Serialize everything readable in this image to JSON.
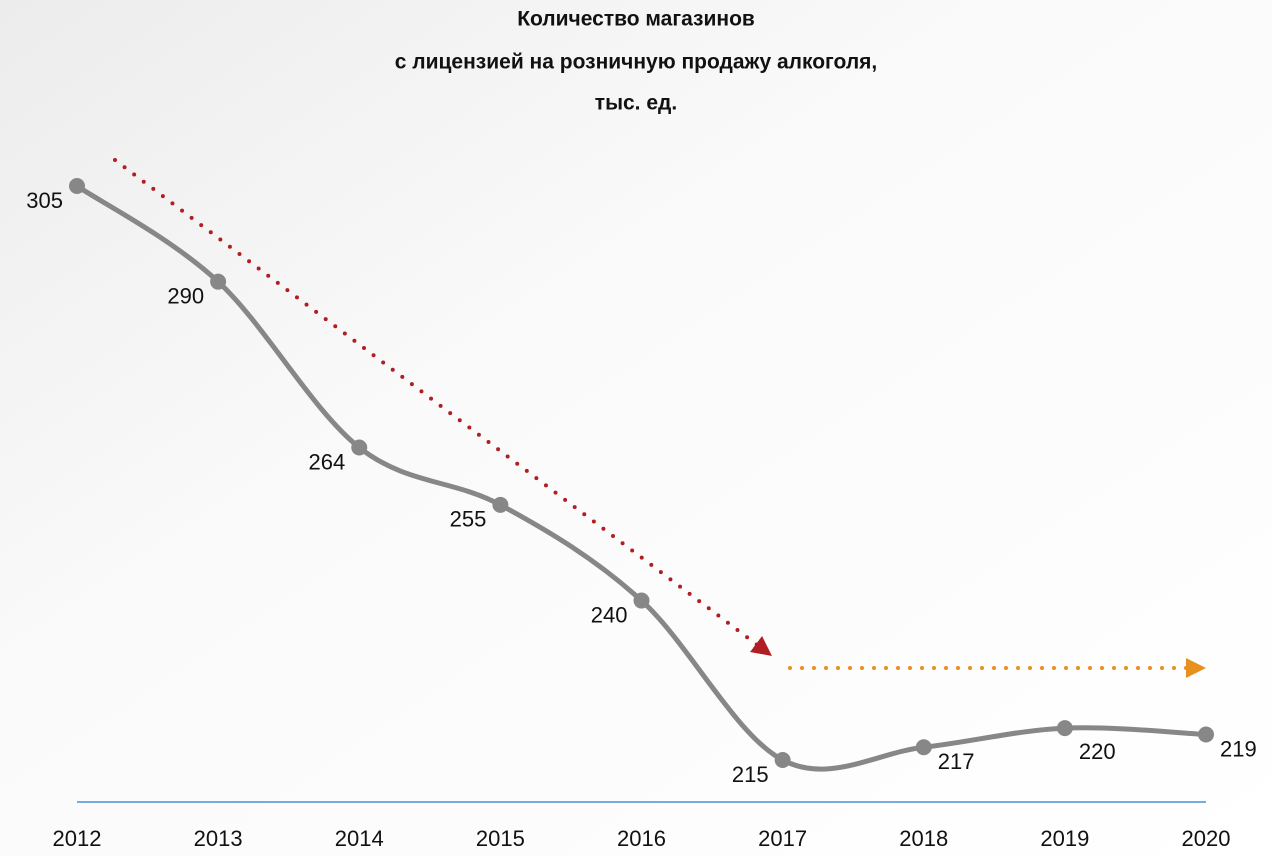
{
  "chart_data": {
    "type": "line",
    "title": [
      "Количество магазинов",
      "с лицензией на розничную продажу алкоголя,",
      "тыс. ед."
    ],
    "categories": [
      "2012",
      "2013",
      "2014",
      "2015",
      "2016",
      "2017",
      "2018",
      "2019",
      "2020"
    ],
    "values": [
      305,
      290,
      264,
      255,
      240,
      215,
      217,
      220,
      219
    ],
    "color": "#878787"
  }
}
